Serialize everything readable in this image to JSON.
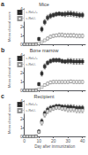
{
  "chart_data": [
    {
      "type": "scatter",
      "title": "Mice",
      "annotations": [
        "a"
      ],
      "ylabel": "Mean clinical score",
      "x": [
        0,
        2,
        4,
        6,
        8,
        10,
        12,
        14,
        16,
        18,
        20,
        22,
        24,
        26,
        28,
        30,
        32,
        34,
        36,
        38,
        40
      ],
      "series": [
        {
          "name": "c-Rel+/+",
          "color": "#111111",
          "marker": "square",
          "values": [
            0,
            0,
            0,
            0,
            0.02,
            0.6,
            1.7,
            2.5,
            3.0,
            3.2,
            3.3,
            3.4,
            3.45,
            3.4,
            3.4,
            3.45,
            3.45,
            3.4,
            3.35,
            3.3,
            3.3
          ],
          "yerr": [
            0,
            0,
            0,
            0,
            0.02,
            0.18,
            0.28,
            0.28,
            0.28,
            0.28,
            0.22,
            0.22,
            0.22,
            0.22,
            0.28,
            0.28,
            0.28,
            0.28,
            0.28,
            0.28,
            0.28
          ]
        },
        {
          "name": "c-Rel-/-",
          "color": "#777777",
          "marker": "open_square",
          "values": [
            0,
            0,
            0,
            0,
            0.0,
            0.08,
            0.25,
            0.45,
            0.65,
            0.85,
            0.95,
            1.0,
            1.05,
            1.05,
            1.0,
            1.0,
            1.0,
            1.0,
            0.95,
            0.95,
            0.95
          ],
          "yerr": [
            0,
            0,
            0,
            0,
            0,
            0.05,
            0.08,
            0.12,
            0.18,
            0.18,
            0.18,
            0.18,
            0.22,
            0.22,
            0.22,
            0.22,
            0.22,
            0.22,
            0.22,
            0.22,
            0.22
          ]
        }
      ],
      "xlim": [
        0,
        42
      ],
      "xticks": [
        0,
        10,
        20,
        30,
        40
      ],
      "ylim": [
        0,
        4.0
      ],
      "yticks": [
        0,
        1,
        2,
        3,
        4
      ],
      "grid": false,
      "legend": "upper left",
      "tick_labels": "y"
    },
    {
      "type": "scatter",
      "title": "Bone marrow",
      "annotations": [
        "b"
      ],
      "ylabel": "Mean clinical score",
      "x": [
        0,
        2,
        4,
        6,
        8,
        10,
        12,
        14,
        16,
        18,
        20,
        22,
        24,
        26,
        28,
        30,
        32,
        34,
        36,
        38,
        40
      ],
      "series": [
        {
          "name": "c-Rel+/+",
          "color": "#111111",
          "marker": "square",
          "values": [
            0,
            0,
            0,
            0,
            0.02,
            0.7,
            1.9,
            2.7,
            3.1,
            3.3,
            3.4,
            3.4,
            3.4,
            3.3,
            3.25,
            3.3,
            3.3,
            3.25,
            3.25,
            3.25,
            3.25
          ],
          "yerr": [
            0,
            0,
            0,
            0,
            0.02,
            0.18,
            0.28,
            0.28,
            0.22,
            0.22,
            0.22,
            0.22,
            0.22,
            0.22,
            0.22,
            0.28,
            0.28,
            0.28,
            0.28,
            0.28,
            0.28
          ]
        },
        {
          "name": "c-Rel-/-",
          "color": "#777777",
          "marker": "open_square",
          "values": [
            0,
            0,
            0,
            0,
            0.0,
            0.12,
            0.35,
            0.6,
            0.75,
            0.9,
            0.95,
            0.95,
            0.95,
            0.95,
            0.95,
            0.95,
            1.0,
            0.95,
            0.95,
            0.95,
            0.95
          ],
          "yerr": [
            0,
            0,
            0,
            0,
            0,
            0.05,
            0.08,
            0.12,
            0.18,
            0.18,
            0.18,
            0.18,
            0.18,
            0.18,
            0.18,
            0.18,
            0.18,
            0.18,
            0.18,
            0.18,
            0.18
          ]
        }
      ],
      "xlim": [
        0,
        42
      ],
      "xticks": [
        0,
        10,
        20,
        30,
        40
      ],
      "ylim": [
        0,
        4.0
      ],
      "yticks": [
        0,
        1,
        2,
        3,
        4
      ],
      "grid": false,
      "legend": "upper left",
      "tick_labels": "y"
    },
    {
      "type": "scatter",
      "title": "Recipient",
      "annotations": [
        "c"
      ],
      "ylabel": "Mean clinical score",
      "xlabel": "Day after immunization",
      "x": [
        0,
        2,
        4,
        6,
        8,
        10,
        12,
        14,
        16,
        18,
        20,
        22,
        24,
        26,
        28,
        30,
        32,
        34,
        36,
        38,
        40
      ],
      "series": [
        {
          "name": "c-Rel+/+",
          "color": "#111111",
          "marker": "square",
          "values": [
            0,
            0,
            0,
            0,
            0.02,
            0.55,
            1.7,
            2.6,
            3.0,
            3.2,
            3.3,
            3.4,
            3.4,
            3.35,
            3.3,
            3.3,
            3.3,
            3.25,
            3.2,
            3.2,
            3.2
          ],
          "yerr": [
            0,
            0,
            0,
            0,
            0.02,
            0.18,
            0.28,
            0.28,
            0.28,
            0.28,
            0.22,
            0.22,
            0.22,
            0.22,
            0.28,
            0.28,
            0.28,
            0.28,
            0.28,
            0.28,
            0.28
          ]
        },
        {
          "name": "c-Rel-/-",
          "color": "#777777",
          "marker": "open_square",
          "values": [
            0,
            0,
            0,
            0,
            0.0,
            0.5,
            1.55,
            2.45,
            2.85,
            3.05,
            3.15,
            3.25,
            3.25,
            3.15,
            3.15,
            3.05,
            3.05,
            3.05,
            2.95,
            2.95,
            2.95
          ],
          "yerr": [
            0,
            0,
            0,
            0,
            0,
            0.18,
            0.28,
            0.28,
            0.28,
            0.28,
            0.22,
            0.22,
            0.22,
            0.22,
            0.28,
            0.28,
            0.28,
            0.28,
            0.28,
            0.28,
            0.28
          ]
        }
      ],
      "xlim": [
        0,
        42
      ],
      "xticks": [
        0,
        10,
        20,
        30,
        40
      ],
      "ylim": [
        0,
        4.0
      ],
      "yticks": [
        0,
        1,
        2,
        3,
        4
      ],
      "grid": false,
      "legend": "upper left"
    }
  ]
}
